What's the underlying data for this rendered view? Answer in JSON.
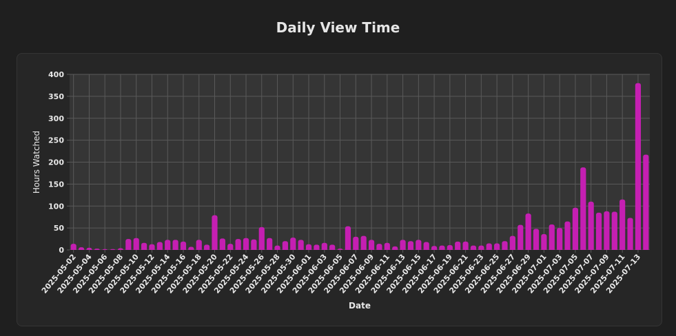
{
  "page": {
    "title": "Daily View Time"
  },
  "colors": {
    "bar": "#c51fb2",
    "plot_bg": "#353535",
    "grid": "#5a5a5a",
    "text": "#e8e8e8"
  },
  "chart_data": {
    "type": "bar",
    "title": "Daily View Time",
    "xlabel": "Date",
    "ylabel": "Hours Watched",
    "ylim": [
      0,
      400
    ],
    "yticks": [
      0,
      50,
      100,
      150,
      200,
      250,
      300,
      350,
      400
    ],
    "grid": true,
    "legend": "none",
    "start_date": "2025-05-02",
    "x_tick_labels": [
      "2025-05-02",
      "2025-05-04",
      "2025-05-06",
      "2025-05-08",
      "2025-05-10",
      "2025-05-12",
      "2025-05-14",
      "2025-05-16",
      "2025-05-18",
      "2025-05-20",
      "2025-05-22",
      "2025-05-24",
      "2025-05-26",
      "2025-05-28",
      "2025-05-30",
      "2025-06-01",
      "2025-06-03",
      "2025-06-05",
      "2025-06-07",
      "2025-06-09",
      "2025-06-11",
      "2025-06-13",
      "2025-06-15",
      "2025-06-17",
      "2025-06-19",
      "2025-06-21",
      "2025-06-23",
      "2025-06-25",
      "2025-06-27",
      "2025-06-29",
      "2025-07-01",
      "2025-07-03",
      "2025-07-05",
      "2025-07-07",
      "2025-07-09",
      "2025-07-11",
      "2025-07-13"
    ],
    "values": [
      14,
      6,
      5,
      3,
      2,
      2,
      4,
      25,
      27,
      16,
      13,
      18,
      23,
      23,
      19,
      7,
      23,
      12,
      79,
      26,
      14,
      25,
      27,
      24,
      52,
      27,
      10,
      20,
      28,
      23,
      13,
      12,
      16,
      12,
      3,
      54,
      30,
      32,
      23,
      14,
      16,
      8,
      23,
      20,
      23,
      18,
      9,
      10,
      11,
      19,
      19,
      10,
      10,
      15,
      15,
      20,
      32,
      57,
      83,
      48,
      36,
      58,
      50,
      65,
      96,
      188,
      110,
      85,
      88,
      87,
      115,
      73,
      380,
      217
    ]
  }
}
